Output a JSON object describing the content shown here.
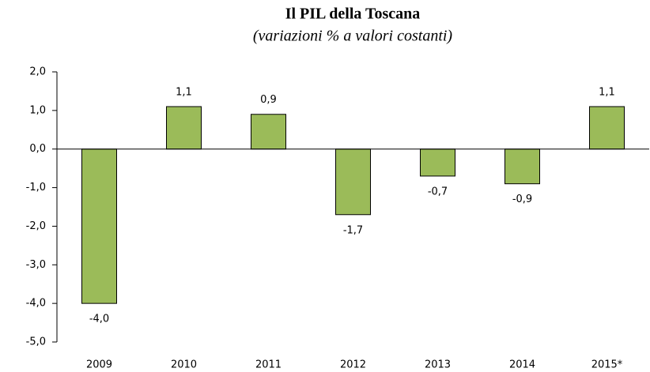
{
  "chart_data": {
    "type": "bar",
    "title": "Il PIL della Toscana",
    "subtitle": "(variazioni % a valori costanti)",
    "categories": [
      "2009",
      "2010",
      "2011",
      "2012",
      "2013",
      "2014",
      "2015*"
    ],
    "values": [
      -4.0,
      1.1,
      0.9,
      -1.7,
      -0.7,
      -0.9,
      1.1
    ],
    "value_labels": [
      "-4,0",
      "1,1",
      "0,9",
      "-1,7",
      "-0,7",
      "-0,9",
      "1,1"
    ],
    "color": "#9bbb59",
    "ylim": [
      -5,
      2
    ],
    "yticks": [
      {
        "value": -5,
        "label": "-5,0"
      },
      {
        "value": -4,
        "label": "-4,0"
      },
      {
        "value": -3,
        "label": "-3,0"
      },
      {
        "value": -2,
        "label": "-2,0"
      },
      {
        "value": -1,
        "label": "-1,0"
      },
      {
        "value": 0,
        "label": "0,0"
      },
      {
        "value": 1,
        "label": "1,0"
      },
      {
        "value": 2,
        "label": "2,0"
      }
    ],
    "grid": false
  }
}
